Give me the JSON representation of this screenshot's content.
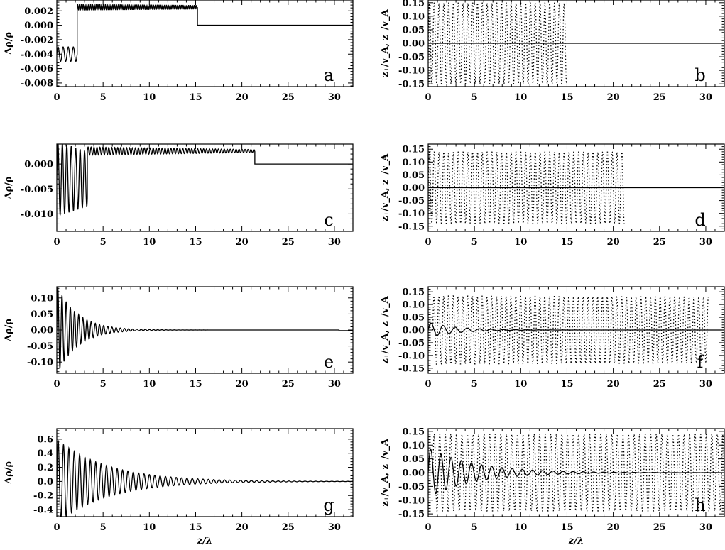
{
  "chart_data": [
    {
      "type": "line",
      "panel_label": "a",
      "ylabel": "Δρ/ρ",
      "xlabel": "",
      "xlim": [
        0,
        32
      ],
      "ylim": [
        -0.0085,
        0.0035
      ],
      "xticks": [
        0,
        5,
        10,
        15,
        20,
        25,
        30
      ],
      "yticks": [
        -0.008,
        -0.006,
        -0.004,
        -0.002,
        0.0,
        0.002
      ],
      "ytick_labels": [
        "-0.008",
        "-0.006",
        "-0.004",
        "-0.002",
        "0.000",
        "0.002"
      ],
      "series": [
        {
          "style": "solid",
          "components": [
            {
              "kind": "sine",
              "x0": 0,
              "x1": 2.2,
              "offset": -0.004,
              "amp": 0.001,
              "amp_end": 0.001,
              "period": 0.55
            },
            {
              "kind": "sine",
              "x0": 2.2,
              "x1": 15.2,
              "offset": 0.0025,
              "amp": 0.0004,
              "amp_end": 0.00025,
              "period": 0.2
            },
            {
              "kind": "const",
              "x0": 15.2,
              "x1": 32,
              "value": 0.0
            }
          ]
        }
      ]
    },
    {
      "type": "line",
      "panel_label": "b",
      "ylabel": "z₊/v_A, z₋/v_A",
      "xlabel": "",
      "xlim": [
        0,
        32
      ],
      "ylim": [
        -0.16,
        0.16
      ],
      "xticks": [
        0,
        5,
        10,
        15,
        20,
        25,
        30
      ],
      "yticks": [
        -0.15,
        -0.1,
        -0.05,
        0.0,
        0.05,
        0.1,
        0.15
      ],
      "ytick_labels": [
        "-0.15",
        "-0.10",
        "-0.05",
        "0.00",
        "0.05",
        "0.10",
        "0.15"
      ],
      "series": [
        {
          "style": "dotted",
          "components": [
            {
              "kind": "sine",
              "x0": 0,
              "x1": 15,
              "offset": 0,
              "amp": 0.15,
              "amp_end": 0.15,
              "period": 0.52
            }
          ]
        },
        {
          "style": "solid",
          "components": [
            {
              "kind": "const",
              "x0": 0,
              "x1": 32,
              "value": 0.0
            }
          ]
        }
      ]
    },
    {
      "type": "line",
      "panel_label": "c",
      "ylabel": "Δρ/ρ",
      "xlabel": "",
      "xlim": [
        0,
        32
      ],
      "ylim": [
        -0.0135,
        0.004
      ],
      "xticks": [
        0,
        5,
        10,
        15,
        20,
        25,
        30
      ],
      "yticks": [
        -0.01,
        -0.005,
        0.0
      ],
      "ytick_labels": [
        "-0.010",
        "-0.005",
        "0.000"
      ],
      "series": [
        {
          "style": "solid",
          "components": [
            {
              "kind": "sine",
              "x0": 0,
              "x1": 3.3,
              "offset": -0.003,
              "amp": 0.0075,
              "amp_end": 0.0055,
              "period": 0.48
            },
            {
              "kind": "sine",
              "x0": 3.3,
              "x1": 21.4,
              "offset": 0.0026,
              "amp": 0.0008,
              "amp_end": 0.0003,
              "period": 0.32
            },
            {
              "kind": "const",
              "x0": 21.4,
              "x1": 32,
              "value": 0.0
            }
          ]
        }
      ]
    },
    {
      "type": "line",
      "panel_label": "d",
      "ylabel": "z₊/v_A, z₋/v_A",
      "xlabel": "",
      "xlim": [
        0,
        32
      ],
      "ylim": [
        -0.17,
        0.17
      ],
      "xticks": [
        0,
        5,
        10,
        15,
        20,
        25,
        30
      ],
      "yticks": [
        -0.15,
        -0.1,
        -0.05,
        0.0,
        0.05,
        0.1,
        0.15
      ],
      "ytick_labels": [
        "-0.15",
        "-0.10",
        "-0.05",
        "0.00",
        "0.05",
        "0.10",
        "0.15"
      ],
      "series": [
        {
          "style": "dotted",
          "components": [
            {
              "kind": "sine",
              "x0": 0,
              "x1": 21.2,
              "offset": 0,
              "amp": 0.14,
              "amp_end": 0.14,
              "period": 0.52
            }
          ]
        },
        {
          "style": "solid",
          "components": [
            {
              "kind": "const",
              "x0": 0,
              "x1": 32,
              "value": 0.0
            }
          ]
        }
      ]
    },
    {
      "type": "line",
      "panel_label": "e",
      "ylabel": "Δρ/ρ",
      "xlabel": "",
      "xlim": [
        0,
        32
      ],
      "ylim": [
        -0.135,
        0.135
      ],
      "xticks": [
        0,
        5,
        10,
        15,
        20,
        25,
        30
      ],
      "yticks": [
        -0.1,
        -0.05,
        0.0,
        0.05,
        0.1
      ],
      "ytick_labels": [
        "-0.10",
        "-0.05",
        "0.00",
        "0.05",
        "0.10"
      ],
      "series": [
        {
          "style": "solid",
          "components": [
            {
              "kind": "decay",
              "x0": 0,
              "x1": 30.5,
              "offset": 0,
              "amp": 0.14,
              "tau": 2.2,
              "period": 0.45,
              "floor": 0.0
            },
            {
              "kind": "const",
              "x0": 30.5,
              "x1": 32,
              "value": -0.002
            }
          ]
        }
      ]
    },
    {
      "type": "line",
      "panel_label": "f",
      "ylabel": "z₊/v_A, z₋/v_A",
      "xlabel": "",
      "xlim": [
        0,
        32
      ],
      "ylim": [
        -0.17,
        0.17
      ],
      "xticks": [
        0,
        5,
        10,
        15,
        20,
        25,
        30
      ],
      "yticks": [
        -0.15,
        -0.1,
        -0.05,
        0.0,
        0.05,
        0.1,
        0.15
      ],
      "ytick_labels": [
        "-0.15",
        "-0.10",
        "-0.05",
        "0.00",
        "0.05",
        "0.10",
        "0.15"
      ],
      "series": [
        {
          "style": "dotted",
          "components": [
            {
              "kind": "sine",
              "x0": 0.5,
              "x1": 30.3,
              "offset": 0,
              "amp": 0.135,
              "amp_end": 0.13,
              "period": 0.52
            }
          ]
        },
        {
          "style": "solid",
          "components": [
            {
              "kind": "decay",
              "x0": 0,
              "x1": 32,
              "offset": 0,
              "amp": 0.03,
              "tau": 3.0,
              "period": 1.3,
              "floor": 0.0
            }
          ]
        }
      ]
    },
    {
      "type": "line",
      "panel_label": "g",
      "ylabel": "Δρ/ρ",
      "xlabel": "z/λ",
      "xlim": [
        0,
        32
      ],
      "ylim": [
        -0.5,
        0.75
      ],
      "xticks": [
        0,
        5,
        10,
        15,
        20,
        25,
        30
      ],
      "yticks": [
        -0.4,
        -0.2,
        0.0,
        0.2,
        0.4,
        0.6
      ],
      "ytick_labels": [
        "-0.4",
        "-0.2",
        "0.0",
        "0.2",
        "0.4",
        "0.6"
      ],
      "series": [
        {
          "style": "solid",
          "components": [
            {
              "kind": "decay",
              "x0": 0,
              "x1": 32,
              "offset": 0,
              "amp": 0.6,
              "tau": 5.5,
              "period": 0.58,
              "floor": 0.0
            }
          ]
        }
      ]
    },
    {
      "type": "line",
      "panel_label": "h",
      "ylabel": "z₊/v_A, z₋/v_A",
      "xlabel": "z/λ",
      "xlim": [
        0,
        32
      ],
      "ylim": [
        -0.16,
        0.16
      ],
      "xticks": [
        0,
        5,
        10,
        15,
        20,
        25,
        30
      ],
      "yticks": [
        -0.15,
        -0.1,
        -0.05,
        0.0,
        0.05,
        0.1,
        0.15
      ],
      "ytick_labels": [
        "-0.15",
        "-0.10",
        "-0.05",
        "0.00",
        "0.05",
        "0.10",
        "0.15"
      ],
      "series": [
        {
          "style": "dotted",
          "components": [
            {
              "kind": "sine",
              "x0": 0.5,
              "x1": 32,
              "offset": 0,
              "amp": 0.14,
              "amp_end": 0.14,
              "period": 0.6
            }
          ]
        },
        {
          "style": "solid",
          "components": [
            {
              "kind": "decay",
              "x0": 0,
              "x1": 32,
              "offset": 0,
              "amp": 0.09,
              "tau": 5.0,
              "period": 1.1,
              "floor": 0.0
            }
          ]
        }
      ]
    }
  ]
}
